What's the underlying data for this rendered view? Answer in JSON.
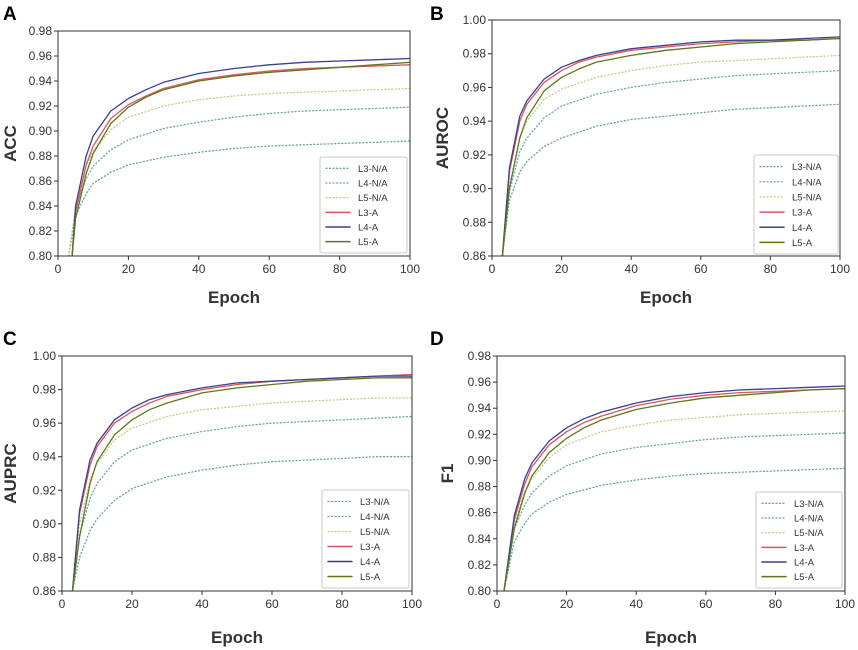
{
  "figure": {
    "colors": {
      "L3-N/A": "#6aa39a",
      "L4-N/A": "#68a8a0",
      "L5-N/A": "#c9c989",
      "L3-A": "#d9575d",
      "L4-A": "#3a3f8f",
      "L5-A": "#5a7a1a"
    },
    "line_styles": {
      "L3-N/A": "dotted",
      "L4-N/A": "dotted",
      "L5-N/A": "dotted",
      "L3-A": "solid",
      "L4-A": "solid",
      "L5-A": "solid"
    }
  },
  "chart_data": [
    {
      "panel": "A",
      "type": "line",
      "title": "",
      "xlabel": "Epoch",
      "ylabel": "ACC",
      "xlim": [
        0,
        100
      ],
      "ylim": [
        0.8,
        0.98
      ],
      "xticks": [
        "0",
        "20",
        "40",
        "60",
        "80",
        "100"
      ],
      "yticks": [
        "0.80",
        "0.82",
        "0.84",
        "0.86",
        "0.88",
        "0.90",
        "0.92",
        "0.94",
        "0.96",
        "0.98"
      ],
      "legend_position": "lower-right",
      "series": [
        {
          "name": "L3-N/A",
          "x": [
            3,
            5,
            8,
            10,
            15,
            20,
            30,
            40,
            50,
            60,
            70,
            80,
            90,
            100
          ],
          "values": [
            0.8,
            0.832,
            0.85,
            0.858,
            0.867,
            0.873,
            0.879,
            0.883,
            0.886,
            0.888,
            0.889,
            0.89,
            0.891,
            0.892
          ]
        },
        {
          "name": "L4-N/A",
          "x": [
            3,
            5,
            8,
            10,
            15,
            20,
            30,
            40,
            50,
            60,
            70,
            80,
            90,
            100
          ],
          "values": [
            0.8,
            0.838,
            0.862,
            0.872,
            0.885,
            0.893,
            0.902,
            0.907,
            0.911,
            0.914,
            0.916,
            0.917,
            0.918,
            0.919
          ]
        },
        {
          "name": "L5-N/A",
          "x": [
            3,
            5,
            8,
            10,
            15,
            20,
            30,
            40,
            50,
            60,
            70,
            80,
            90,
            100
          ],
          "values": [
            0.8,
            0.84,
            0.872,
            0.884,
            0.901,
            0.911,
            0.92,
            0.925,
            0.928,
            0.93,
            0.931,
            0.932,
            0.933,
            0.934
          ]
        },
        {
          "name": "L3-A",
          "x": [
            4,
            5,
            8,
            10,
            15,
            20,
            25,
            30,
            40,
            50,
            60,
            70,
            80,
            90,
            100
          ],
          "values": [
            0.8,
            0.835,
            0.873,
            0.888,
            0.91,
            0.921,
            0.928,
            0.934,
            0.941,
            0.945,
            0.948,
            0.95,
            0.951,
            0.952,
            0.953
          ]
        },
        {
          "name": "L4-A",
          "x": [
            4,
            5,
            8,
            10,
            15,
            20,
            25,
            30,
            40,
            50,
            60,
            70,
            80,
            90,
            100
          ],
          "values": [
            0.8,
            0.84,
            0.88,
            0.896,
            0.916,
            0.926,
            0.933,
            0.939,
            0.946,
            0.95,
            0.953,
            0.955,
            0.956,
            0.957,
            0.958
          ]
        },
        {
          "name": "L5-A",
          "x": [
            4,
            5,
            8,
            10,
            15,
            20,
            25,
            30,
            40,
            50,
            60,
            70,
            80,
            90,
            100
          ],
          "values": [
            0.8,
            0.83,
            0.866,
            0.882,
            0.906,
            0.919,
            0.927,
            0.933,
            0.94,
            0.944,
            0.947,
            0.949,
            0.951,
            0.953,
            0.955
          ]
        }
      ]
    },
    {
      "panel": "B",
      "type": "line",
      "title": "",
      "xlabel": "Epoch",
      "ylabel": "AUROC",
      "xlim": [
        0,
        100
      ],
      "ylim": [
        0.86,
        1.0
      ],
      "xticks": [
        "0",
        "20",
        "40",
        "60",
        "80",
        "100"
      ],
      "yticks": [
        "0.86",
        "0.88",
        "0.90",
        "0.92",
        "0.94",
        "0.96",
        "0.98",
        "1.00"
      ],
      "legend_position": "lower-right",
      "series": [
        {
          "name": "L3-N/A",
          "x": [
            3,
            5,
            8,
            10,
            15,
            20,
            30,
            40,
            50,
            60,
            70,
            80,
            90,
            100
          ],
          "values": [
            0.86,
            0.893,
            0.91,
            0.916,
            0.925,
            0.93,
            0.937,
            0.941,
            0.943,
            0.945,
            0.947,
            0.948,
            0.949,
            0.95
          ]
        },
        {
          "name": "L4-N/A",
          "x": [
            3,
            5,
            8,
            10,
            15,
            20,
            30,
            40,
            50,
            60,
            70,
            80,
            90,
            100
          ],
          "values": [
            0.86,
            0.898,
            0.922,
            0.93,
            0.942,
            0.949,
            0.956,
            0.96,
            0.963,
            0.965,
            0.967,
            0.968,
            0.969,
            0.97
          ]
        },
        {
          "name": "L5-N/A",
          "x": [
            3,
            5,
            8,
            10,
            15,
            20,
            30,
            40,
            50,
            60,
            70,
            80,
            90,
            100
          ],
          "values": [
            0.86,
            0.902,
            0.93,
            0.94,
            0.953,
            0.959,
            0.966,
            0.97,
            0.973,
            0.975,
            0.976,
            0.977,
            0.978,
            0.979
          ]
        },
        {
          "name": "L3-A",
          "x": [
            3,
            5,
            8,
            10,
            15,
            20,
            25,
            30,
            40,
            50,
            60,
            70,
            80,
            90,
            100
          ],
          "values": [
            0.86,
            0.91,
            0.94,
            0.95,
            0.963,
            0.97,
            0.975,
            0.978,
            0.982,
            0.984,
            0.986,
            0.987,
            0.988,
            0.988,
            0.989
          ]
        },
        {
          "name": "L4-A",
          "x": [
            3,
            5,
            8,
            10,
            15,
            20,
            25,
            30,
            40,
            50,
            60,
            70,
            80,
            90,
            100
          ],
          "values": [
            0.86,
            0.912,
            0.943,
            0.952,
            0.965,
            0.972,
            0.976,
            0.979,
            0.983,
            0.985,
            0.987,
            0.988,
            0.988,
            0.989,
            0.99
          ]
        },
        {
          "name": "L5-A",
          "x": [
            3,
            5,
            8,
            10,
            15,
            20,
            25,
            30,
            40,
            50,
            60,
            70,
            80,
            90,
            100
          ],
          "values": [
            0.86,
            0.9,
            0.93,
            0.942,
            0.958,
            0.966,
            0.971,
            0.975,
            0.979,
            0.982,
            0.984,
            0.986,
            0.987,
            0.988,
            0.989
          ]
        }
      ]
    },
    {
      "panel": "C",
      "type": "line",
      "title": "",
      "xlabel": "Epoch",
      "ylabel": "AUPRC",
      "xlim": [
        0,
        100
      ],
      "ylim": [
        0.86,
        1.0
      ],
      "xticks": [
        "0",
        "20",
        "40",
        "60",
        "80",
        "100"
      ],
      "yticks": [
        "0.86",
        "0.88",
        "0.90",
        "0.92",
        "0.94",
        "0.96",
        "0.98",
        "1.00"
      ],
      "legend_position": "lower-right",
      "series": [
        {
          "name": "L3-N/A",
          "x": [
            3,
            5,
            8,
            10,
            15,
            20,
            30,
            40,
            50,
            60,
            70,
            80,
            90,
            100
          ],
          "values": [
            0.86,
            0.88,
            0.896,
            0.903,
            0.914,
            0.921,
            0.928,
            0.932,
            0.935,
            0.937,
            0.938,
            0.939,
            0.94,
            0.94
          ]
        },
        {
          "name": "L4-N/A",
          "x": [
            3,
            5,
            8,
            10,
            15,
            20,
            30,
            40,
            50,
            60,
            70,
            80,
            90,
            100
          ],
          "values": [
            0.86,
            0.893,
            0.915,
            0.924,
            0.937,
            0.944,
            0.951,
            0.955,
            0.958,
            0.96,
            0.961,
            0.962,
            0.963,
            0.964
          ]
        },
        {
          "name": "L5-N/A",
          "x": [
            3,
            5,
            8,
            10,
            15,
            20,
            30,
            40,
            50,
            60,
            70,
            80,
            90,
            100
          ],
          "values": [
            0.86,
            0.9,
            0.926,
            0.936,
            0.95,
            0.957,
            0.964,
            0.968,
            0.97,
            0.972,
            0.973,
            0.974,
            0.975,
            0.975
          ]
        },
        {
          "name": "L3-A",
          "x": [
            3,
            5,
            8,
            10,
            15,
            20,
            25,
            30,
            40,
            50,
            60,
            70,
            80,
            90,
            100
          ],
          "values": [
            0.86,
            0.906,
            0.935,
            0.946,
            0.96,
            0.967,
            0.972,
            0.976,
            0.98,
            0.983,
            0.985,
            0.986,
            0.987,
            0.988,
            0.989
          ]
        },
        {
          "name": "L4-A",
          "x": [
            3,
            5,
            8,
            10,
            15,
            20,
            25,
            30,
            40,
            50,
            60,
            70,
            80,
            90,
            100
          ],
          "values": [
            0.86,
            0.908,
            0.938,
            0.948,
            0.962,
            0.969,
            0.974,
            0.977,
            0.981,
            0.984,
            0.985,
            0.986,
            0.987,
            0.988,
            0.988
          ]
        },
        {
          "name": "L5-A",
          "x": [
            3,
            5,
            8,
            10,
            15,
            20,
            25,
            30,
            40,
            50,
            60,
            70,
            80,
            90,
            100
          ],
          "values": [
            0.86,
            0.892,
            0.924,
            0.937,
            0.953,
            0.962,
            0.968,
            0.972,
            0.978,
            0.981,
            0.983,
            0.985,
            0.986,
            0.987,
            0.987
          ]
        }
      ]
    },
    {
      "panel": "D",
      "type": "line",
      "title": "",
      "xlabel": "Epoch",
      "ylabel": "F1",
      "xlim": [
        0,
        100
      ],
      "ylim": [
        0.8,
        0.98
      ],
      "xticks": [
        "0",
        "20",
        "40",
        "60",
        "80",
        "100"
      ],
      "yticks": [
        "0.80",
        "0.82",
        "0.84",
        "0.86",
        "0.88",
        "0.90",
        "0.92",
        "0.94",
        "0.96",
        "0.98"
      ],
      "legend_position": "lower-right",
      "series": [
        {
          "name": "L3-N/A",
          "x": [
            2,
            5,
            8,
            10,
            15,
            20,
            30,
            40,
            50,
            60,
            70,
            80,
            90,
            100
          ],
          "values": [
            0.8,
            0.838,
            0.852,
            0.859,
            0.868,
            0.874,
            0.881,
            0.885,
            0.888,
            0.89,
            0.891,
            0.892,
            0.893,
            0.894
          ]
        },
        {
          "name": "L4-N/A",
          "x": [
            2,
            5,
            8,
            10,
            15,
            20,
            30,
            40,
            50,
            60,
            70,
            80,
            90,
            100
          ],
          "values": [
            0.8,
            0.848,
            0.866,
            0.875,
            0.888,
            0.896,
            0.905,
            0.91,
            0.913,
            0.916,
            0.918,
            0.919,
            0.92,
            0.921
          ]
        },
        {
          "name": "L5-N/A",
          "x": [
            2,
            5,
            8,
            10,
            15,
            20,
            30,
            40,
            50,
            60,
            70,
            80,
            90,
            100
          ],
          "values": [
            0.8,
            0.852,
            0.876,
            0.886,
            0.902,
            0.912,
            0.922,
            0.927,
            0.931,
            0.933,
            0.935,
            0.936,
            0.937,
            0.938
          ]
        },
        {
          "name": "L3-A",
          "x": [
            2,
            5,
            8,
            10,
            15,
            20,
            25,
            30,
            40,
            50,
            60,
            70,
            80,
            90,
            100
          ],
          "values": [
            0.8,
            0.855,
            0.882,
            0.895,
            0.912,
            0.922,
            0.929,
            0.934,
            0.942,
            0.947,
            0.95,
            0.952,
            0.953,
            0.954,
            0.955
          ]
        },
        {
          "name": "L4-A",
          "x": [
            2,
            5,
            8,
            10,
            15,
            20,
            25,
            30,
            40,
            50,
            60,
            70,
            80,
            90,
            100
          ],
          "values": [
            0.8,
            0.858,
            0.886,
            0.898,
            0.915,
            0.925,
            0.932,
            0.937,
            0.944,
            0.949,
            0.952,
            0.954,
            0.955,
            0.956,
            0.957
          ]
        },
        {
          "name": "L5-A",
          "x": [
            2,
            5,
            8,
            10,
            15,
            20,
            25,
            30,
            40,
            50,
            60,
            70,
            80,
            90,
            100
          ],
          "values": [
            0.8,
            0.848,
            0.875,
            0.888,
            0.906,
            0.917,
            0.925,
            0.931,
            0.939,
            0.944,
            0.948,
            0.95,
            0.952,
            0.954,
            0.955
          ]
        }
      ]
    }
  ]
}
